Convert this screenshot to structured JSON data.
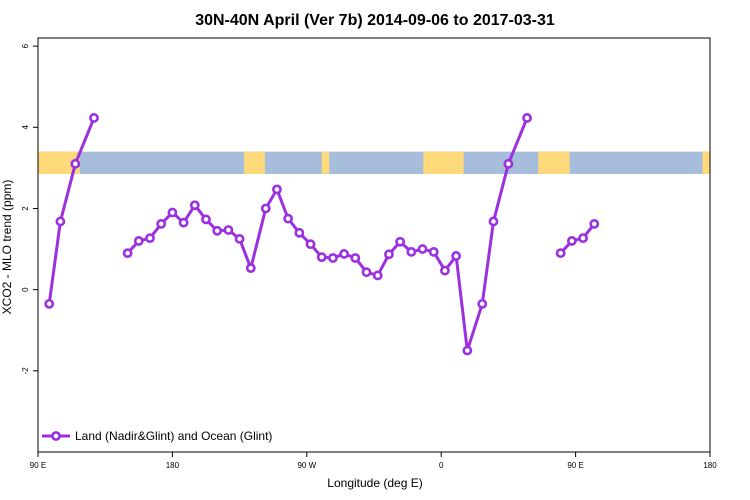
{
  "chart_data": {
    "type": "line",
    "title": "30N-40N April (Ver 7b)   2014-09-06 to 2017-03-31",
    "xlabel": "Longitude (deg E)",
    "ylabel": "XCO2 - MLO trend (ppm)",
    "xlim": [
      90,
      540
    ],
    "ylim": [
      -4,
      6.2
    ],
    "x_ticks": [
      {
        "value": 90,
        "label": "90 E"
      },
      {
        "value": 180,
        "label": "180"
      },
      {
        "value": 270,
        "label": "90 W"
      },
      {
        "value": 360,
        "label": "0"
      },
      {
        "value": 450,
        "label": "90 E"
      },
      {
        "value": 540,
        "label": "180"
      }
    ],
    "y_ticks": [
      {
        "value": -2,
        "label": "-2"
      },
      {
        "value": 0,
        "label": "0"
      },
      {
        "value": 2,
        "label": "2"
      },
      {
        "value": 4,
        "label": "4"
      },
      {
        "value": 6,
        "label": "6"
      }
    ],
    "legend_position": "bottom-left",
    "series": [
      {
        "name": "Land (Nadir&Glint) and Ocean (Glint)",
        "color": "#9b30e0",
        "segments": [
          [
            [
              97.5,
              -0.35
            ],
            [
              105,
              1.68
            ],
            [
              115,
              3.1
            ],
            [
              127.5,
              4.23
            ]
          ],
          [
            [
              150,
              0.9
            ],
            [
              157.5,
              1.2
            ],
            [
              165,
              1.27
            ],
            [
              172.5,
              1.62
            ],
            [
              180,
              1.9
            ],
            [
              187.5,
              1.65
            ],
            [
              195,
              2.08
            ],
            [
              202.5,
              1.73
            ],
            [
              210,
              1.45
            ],
            [
              217.5,
              1.47
            ],
            [
              225,
              1.25
            ],
            [
              232.5,
              0.53
            ],
            [
              242.5,
              2.0
            ],
            [
              250,
              2.47
            ],
            [
              257.5,
              1.75
            ],
            [
              265,
              1.4
            ],
            [
              272.5,
              1.12
            ],
            [
              280,
              0.8
            ],
            [
              287.5,
              0.78
            ],
            [
              295,
              0.88
            ],
            [
              302.5,
              0.78
            ],
            [
              310,
              0.43
            ],
            [
              317.5,
              0.35
            ],
            [
              325,
              0.87
            ],
            [
              332.5,
              1.18
            ],
            [
              340,
              0.93
            ],
            [
              347.5,
              1.0
            ],
            [
              355,
              0.93
            ],
            [
              362.5,
              0.47
            ],
            [
              370,
              0.83
            ],
            [
              377.5,
              -1.5
            ],
            [
              387.5,
              -0.35
            ],
            [
              395,
              1.68
            ],
            [
              405,
              3.1
            ],
            [
              417.5,
              4.23
            ]
          ],
          [
            [
              440,
              0.9
            ],
            [
              447.5,
              1.2
            ],
            [
              455,
              1.27
            ],
            [
              462.5,
              1.62
            ]
          ]
        ]
      }
    ],
    "band": {
      "y_top": 3.4,
      "y_bottom": 2.85,
      "land_color": "#ffd97a",
      "ocean_color": "#a6bddb",
      "land_intervals": [
        [
          90,
          118
        ],
        [
          228,
          242
        ],
        [
          280,
          285
        ],
        [
          348,
          375
        ],
        [
          425,
          446
        ],
        [
          535,
          540
        ]
      ]
    }
  }
}
